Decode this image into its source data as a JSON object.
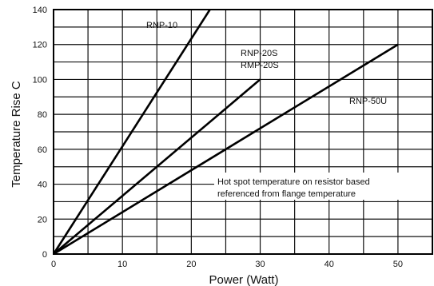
{
  "chart_data": {
    "type": "line",
    "xlabel": "Power  (Watt)",
    "ylabel": "Temperature  Rise  C",
    "xlim": [
      0,
      55
    ],
    "ylim": [
      0,
      140
    ],
    "x_ticks": [
      0,
      10,
      20,
      30,
      40,
      50
    ],
    "y_ticks": [
      0,
      20,
      40,
      60,
      80,
      100,
      120,
      140
    ],
    "grid": true,
    "series": [
      {
        "name": "RNP-10",
        "x": [
          0,
          22.7
        ],
        "y": [
          0,
          140
        ]
      },
      {
        "name": "RNP-20S\nRMP-20S",
        "label_lines": [
          "RNP-20S",
          "RMP-20S"
        ],
        "x": [
          0,
          30
        ],
        "y": [
          0,
          100
        ]
      },
      {
        "name": "RNP-50U",
        "x": [
          0,
          50
        ],
        "y": [
          0,
          120
        ]
      }
    ],
    "annotation": {
      "lines": [
        "Hot spot temperature on resistor based",
        "referenced from flange temperature"
      ]
    }
  }
}
